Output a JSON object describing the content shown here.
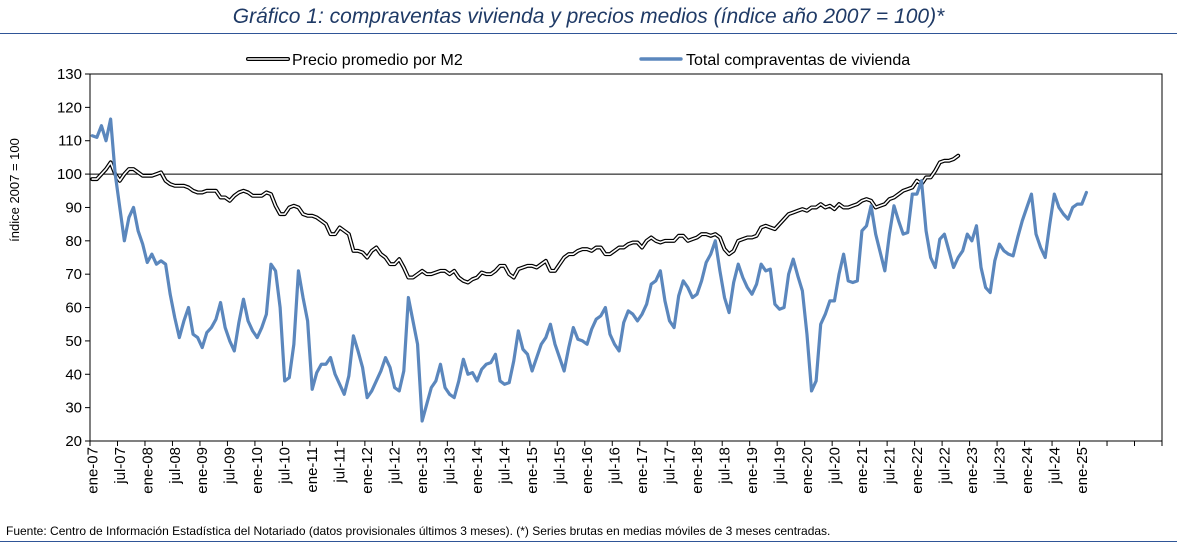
{
  "title": "Gráfico 1: compraventas vivienda y precios medios (índice año 2007 = 100)*",
  "source": "Fuente: Centro de Información Estadística del Notariado (datos provisionales últimos 3 meses). (*) Series brutas en medias móviles de 3 meses centradas.",
  "colors": {
    "title": "#1f3a66",
    "rule": "#2f5597",
    "compraventas": "#5b87bd",
    "precio_outline": "#000000",
    "precio_fill": "#ffffff"
  },
  "chart_data": {
    "type": "line",
    "title": "Gráfico 1: compraventas vivienda y precios medios (índice año 2007 = 100)*",
    "ylabel": "índice 2007 = 100",
    "xlabel": "",
    "ylim": [
      20,
      130
    ],
    "yticks": [
      20,
      30,
      40,
      50,
      60,
      70,
      80,
      90,
      100,
      110,
      120,
      130
    ],
    "grid": false,
    "reference_line": 100,
    "legend_position": "top",
    "x_start": "2007-01",
    "x_tick_labels": [
      "ene-07",
      "jul-07",
      "ene-08",
      "jul-08",
      "ene-09",
      "jul-09",
      "ene-10",
      "jul-10",
      "ene-11",
      "jul-11",
      "ene-12",
      "jul-12",
      "ene-13",
      "jul-13",
      "ene-14",
      "jul-14",
      "ene-15",
      "jul-15",
      "ene-16",
      "jul-16",
      "ene-17",
      "jul-17",
      "ene-18",
      "jul-18",
      "ene-19",
      "jul-19",
      "ene-20",
      "jul-20",
      "ene-21",
      "jul-21",
      "ene-22",
      "jul-22",
      "ene-23",
      "jul-23",
      "ene-24",
      "jul-24",
      "ene-25"
    ],
    "series": [
      {
        "name": "Precio promedio por M2",
        "style": "double-line",
        "values": [
          98.5,
          98.5,
          100,
          101.5,
          103.5,
          100,
          98,
          100,
          101.5,
          101.5,
          100.5,
          99.5,
          99.5,
          99.5,
          100,
          100.5,
          98,
          97,
          96.5,
          96.5,
          96.5,
          96,
          95,
          94.5,
          94.5,
          95,
          95,
          95,
          93,
          93,
          92,
          93.5,
          94.5,
          95,
          94.5,
          93.5,
          93.5,
          93.5,
          94.5,
          94,
          90.5,
          88,
          88,
          90,
          90.5,
          90,
          88,
          87.5,
          87.5,
          87,
          86,
          85,
          82,
          82,
          84,
          83,
          82,
          77,
          77,
          76.5,
          75,
          77,
          78,
          76,
          75,
          73,
          73,
          74.5,
          72,
          69,
          69,
          70,
          71,
          70,
          70,
          70.5,
          71,
          71,
          70,
          71,
          69,
          68,
          67.5,
          68.5,
          69,
          70.5,
          70,
          70,
          71,
          72.5,
          72.5,
          70,
          69,
          71.5,
          72,
          72.5,
          72.5,
          72,
          73,
          74,
          71,
          71,
          73,
          75,
          76,
          76,
          77,
          77.5,
          77.5,
          77,
          78,
          78,
          76,
          76,
          77,
          78,
          78,
          79,
          79.5,
          79.5,
          78,
          80,
          81,
          80,
          79.5,
          80,
          80,
          80,
          81.5,
          81.5,
          80,
          80.5,
          81,
          82,
          82,
          81.5,
          82,
          81,
          77.5,
          76,
          77,
          80,
          80.5,
          81,
          81,
          81.5,
          84,
          84.5,
          84,
          83.5,
          85,
          86.5,
          88,
          88.5,
          89,
          89.5,
          89,
          90,
          90,
          91,
          90,
          90.5,
          89.5,
          91,
          90,
          90,
          90.5,
          91,
          92,
          92.5,
          92,
          90,
          90.5,
          91,
          92.5,
          93,
          94,
          95,
          95.5,
          96,
          98,
          97,
          99,
          99,
          101,
          103.5,
          104,
          104,
          104.5,
          105.5
        ]
      },
      {
        "name": "Total compraventas de vivienda",
        "style": "line",
        "values": [
          111.5,
          111,
          114.5,
          110,
          116.5,
          100,
          90,
          80,
          87,
          90,
          83,
          79,
          73.5,
          76,
          73,
          74,
          73,
          64,
          57,
          51,
          56,
          60,
          52,
          51,
          48,
          52.5,
          54,
          56.5,
          61.5,
          54,
          50,
          47,
          55.5,
          62.5,
          56,
          53,
          51,
          54,
          58,
          73,
          71,
          60,
          38,
          39,
          49,
          71,
          63,
          56,
          35.5,
          40.5,
          43,
          43,
          45,
          40,
          37,
          34,
          39.5,
          51.5,
          47,
          42,
          33,
          35,
          38,
          41,
          45,
          42,
          36,
          35,
          41,
          63,
          56,
          49,
          26,
          31,
          36,
          38,
          43,
          36,
          34,
          33,
          38,
          44.5,
          40,
          40.5,
          38,
          41.5,
          43,
          43.5,
          46,
          38,
          37,
          37.5,
          44,
          53,
          47.5,
          46,
          41,
          45,
          49,
          51,
          55,
          49,
          45,
          41,
          48,
          54,
          50.5,
          50,
          49,
          53.5,
          56.5,
          57.5,
          60,
          52,
          49,
          47,
          55.5,
          59,
          58,
          56,
          58,
          61,
          67,
          68,
          71,
          62,
          56,
          54,
          63.5,
          68,
          66,
          63,
          64,
          68,
          73.5,
          76,
          80,
          71,
          63,
          58.5,
          67.5,
          73,
          69,
          66,
          64,
          67,
          73,
          71,
          71.5,
          61,
          59.5,
          60,
          70,
          74.5,
          69.5,
          65,
          52,
          35,
          38,
          55,
          58,
          62,
          62,
          70,
          76,
          68,
          67.5,
          68,
          83,
          84.5,
          90.5,
          82,
          76.5,
          71,
          82,
          90.5,
          86,
          82,
          82.5,
          94,
          94,
          98,
          83,
          75,
          72,
          80.5,
          82,
          77,
          72,
          75,
          77,
          82,
          80,
          84.5,
          72,
          66,
          64.5,
          74,
          79,
          77,
          76,
          75.5,
          81,
          86,
          90,
          94,
          82,
          78,
          75,
          85,
          94,
          90,
          88,
          86.5,
          90,
          91,
          91,
          94.5
        ]
      }
    ]
  }
}
